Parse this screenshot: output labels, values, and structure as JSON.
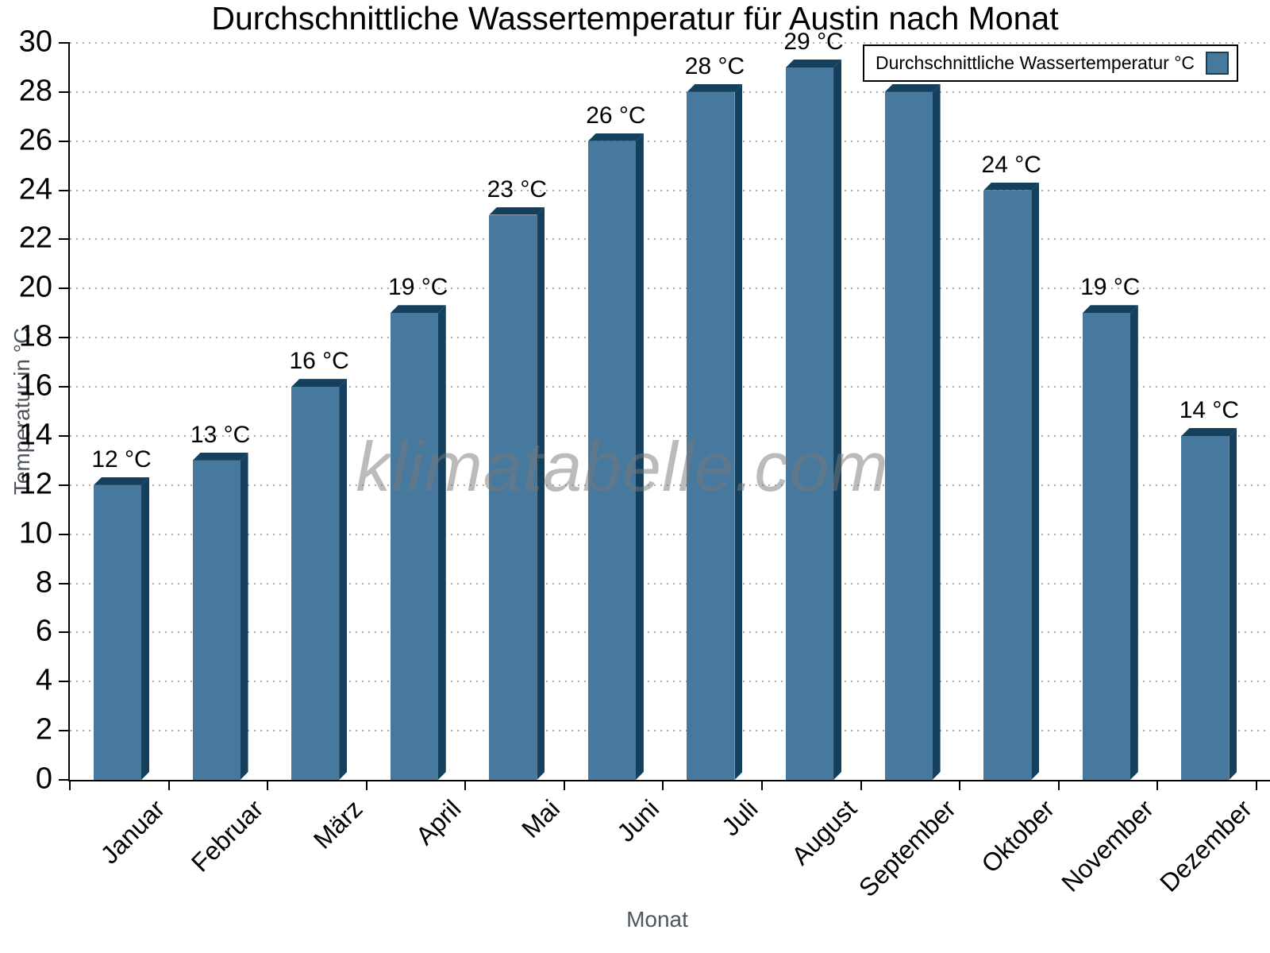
{
  "watermark": {
    "text": "klimatabelle.com"
  },
  "chart_data": {
    "type": "bar",
    "title": "Durchschnittliche Wassertemperatur für Austin nach Monat",
    "xlabel": "Monat",
    "ylabel": "Temperatur in °C",
    "categories": [
      "Januar",
      "Februar",
      "März",
      "April",
      "Mai",
      "Juni",
      "Juli",
      "August",
      "September",
      "Oktober",
      "November",
      "Dezember"
    ],
    "values": [
      12,
      13,
      16,
      19,
      23,
      26,
      28,
      29,
      28,
      24,
      19,
      14
    ],
    "value_suffix": " °C",
    "ylim": [
      0,
      30
    ],
    "ytick_step": 2,
    "grid": "horizontal-dotted",
    "legend": {
      "label": "Durchschnittliche Wassertemperatur °C",
      "position": "top-right"
    },
    "colors": {
      "bar_face": "#47799E",
      "bar_edge": "#14405E",
      "gridline": "#ababab",
      "axis_title": "#4e565e"
    }
  }
}
